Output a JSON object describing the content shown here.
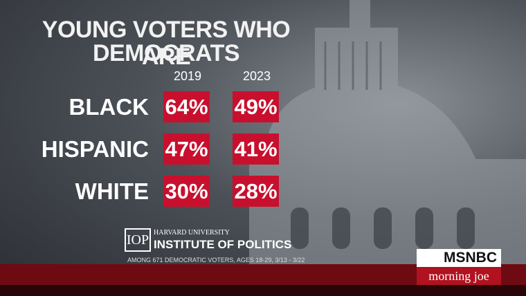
{
  "header": {
    "title_lines": [
      "YOUNG VOTERS WHO ARE",
      "DEMOCRATS"
    ]
  },
  "table": {
    "columns": [
      "2019",
      "2023"
    ],
    "rows": [
      {
        "label": "BLACK",
        "cells": [
          "64%",
          "49%"
        ]
      },
      {
        "label": "HISPANIC",
        "cells": [
          "47%",
          "41%"
        ]
      },
      {
        "label": "WHITE",
        "cells": [
          "30%",
          "28%"
        ]
      }
    ]
  },
  "source": {
    "logo": "IOP",
    "university": "HARVARD UNIVERSITY",
    "institute": "INSTITUTE OF POLITICS",
    "note": "AMONG 671 DEMOCRATIC VOTERS, AGES 18-29,  3/13 - 3/22"
  },
  "network": {
    "name": "MSNBC",
    "show": "morning joe"
  }
}
